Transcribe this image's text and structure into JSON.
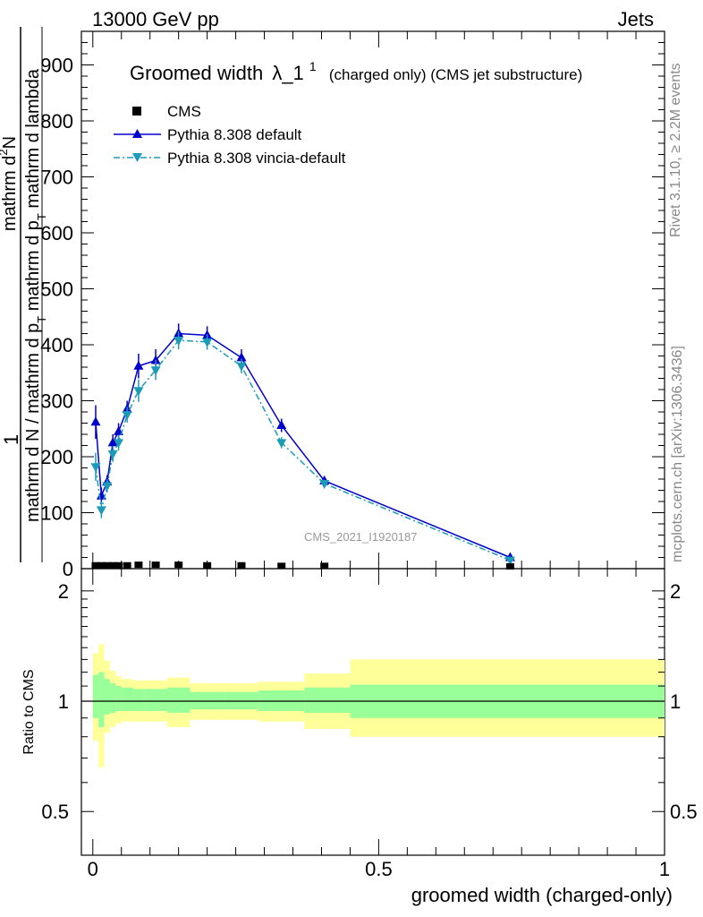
{
  "header": {
    "left": "13000 GeV pp",
    "right": "Jets"
  },
  "title": {
    "main": "Groomed width",
    "lambda": "λ_1",
    "sup": "1",
    "rest": "(charged only) (CMS jet substructure)"
  },
  "side_labels": {
    "rivet": "Rivet 3.1.10, ≥ 2.2M events",
    "mcplots": "mcplots.cern.ch [arXiv:1306.3436]"
  },
  "watermark": "CMS_2021_I1920187",
  "ylabel_main": {
    "denominator": "mathrm d N / mathrm d p",
    "denominator_sub": "T",
    "denominator_rest": " mathrm d p",
    "denominator_sub2": "T",
    "denominator_rest2": " mathrm d lambda",
    "numerator_top": "mathrm d",
    "numerator_sup": "2",
    "numerator_rest": "N",
    "prefix": "1"
  },
  "ylabel_ratio": "Ratio to CMS",
  "xlabel": "groomed width (charged-only)",
  "colors": {
    "cms": "#000000",
    "pythia_default": "#0000cc",
    "pythia_vincia": "#1b9bb8",
    "band_inner": "#99ff99",
    "band_outer": "#ffff99"
  },
  "chart_data": [
    {
      "type": "line",
      "panel": "main",
      "xlim": [
        -0.02,
        1.0
      ],
      "ylim": [
        0,
        960
      ],
      "yticks": [
        0,
        100,
        200,
        300,
        400,
        500,
        600,
        700,
        800,
        900
      ],
      "legend_placement": "top-left",
      "series": [
        {
          "name": "CMS",
          "marker": "square",
          "x": [
            0.005,
            0.015,
            0.025,
            0.035,
            0.045,
            0.06,
            0.08,
            0.11,
            0.15,
            0.2,
            0.26,
            0.33,
            0.405,
            0.73
          ],
          "y": [
            2,
            2,
            2,
            2,
            2,
            2,
            3,
            3,
            3,
            2,
            2,
            1,
            1,
            0
          ]
        },
        {
          "name": "Pythia 8.308 default",
          "marker": "triangle-up",
          "x": [
            0.005,
            0.015,
            0.025,
            0.035,
            0.045,
            0.06,
            0.08,
            0.11,
            0.15,
            0.2,
            0.26,
            0.33,
            0.405,
            0.73
          ],
          "y": [
            262,
            130,
            155,
            225,
            245,
            285,
            362,
            372,
            420,
            417,
            377,
            256,
            157,
            20
          ],
          "err": [
            30,
            15,
            12,
            15,
            15,
            15,
            22,
            20,
            18,
            16,
            15,
            12,
            8,
            3
          ]
        },
        {
          "name": "Pythia 8.308 vincia-default",
          "marker": "triangle-down",
          "x": [
            0.005,
            0.015,
            0.025,
            0.035,
            0.045,
            0.06,
            0.08,
            0.11,
            0.15,
            0.2,
            0.26,
            0.33,
            0.405,
            0.73
          ],
          "y": [
            182,
            105,
            148,
            205,
            225,
            275,
            318,
            355,
            408,
            405,
            362,
            225,
            152,
            15
          ],
          "err": [
            25,
            15,
            12,
            14,
            14,
            14,
            20,
            18,
            16,
            14,
            13,
            10,
            7,
            3
          ]
        }
      ]
    },
    {
      "type": "area",
      "panel": "ratio",
      "xlim": [
        -0.02,
        1.0
      ],
      "ylim": [
        0.38,
        2.3
      ],
      "ylog": true,
      "yticks": [
        0.5,
        1,
        2
      ],
      "reference_line": 1,
      "bins": [
        {
          "lo": 0.0,
          "hi": 0.01,
          "inner": [
            0.9,
            1.18
          ],
          "outer": [
            0.78,
            1.35
          ]
        },
        {
          "lo": 0.01,
          "hi": 0.02,
          "inner": [
            0.85,
            1.2
          ],
          "outer": [
            0.66,
            1.43
          ]
        },
        {
          "lo": 0.02,
          "hi": 0.03,
          "inner": [
            0.92,
            1.15
          ],
          "outer": [
            0.82,
            1.29
          ]
        },
        {
          "lo": 0.03,
          "hi": 0.04,
          "inner": [
            0.93,
            1.12
          ],
          "outer": [
            0.85,
            1.21
          ]
        },
        {
          "lo": 0.04,
          "hi": 0.05,
          "inner": [
            0.94,
            1.1
          ],
          "outer": [
            0.87,
            1.17
          ]
        },
        {
          "lo": 0.05,
          "hi": 0.07,
          "inner": [
            0.94,
            1.09
          ],
          "outer": [
            0.88,
            1.15
          ]
        },
        {
          "lo": 0.07,
          "hi": 0.09,
          "inner": [
            0.94,
            1.08
          ],
          "outer": [
            0.88,
            1.14
          ]
        },
        {
          "lo": 0.09,
          "hi": 0.13,
          "inner": [
            0.94,
            1.08
          ],
          "outer": [
            0.88,
            1.14
          ]
        },
        {
          "lo": 0.13,
          "hi": 0.17,
          "inner": [
            0.93,
            1.09
          ],
          "outer": [
            0.85,
            1.16
          ]
        },
        {
          "lo": 0.17,
          "hi": 0.23,
          "inner": [
            0.95,
            1.06
          ],
          "outer": [
            0.89,
            1.12
          ]
        },
        {
          "lo": 0.23,
          "hi": 0.29,
          "inner": [
            0.95,
            1.06
          ],
          "outer": [
            0.89,
            1.12
          ]
        },
        {
          "lo": 0.29,
          "hi": 0.37,
          "inner": [
            0.94,
            1.07
          ],
          "outer": [
            0.88,
            1.13
          ]
        },
        {
          "lo": 0.37,
          "hi": 0.45,
          "inner": [
            0.93,
            1.09
          ],
          "outer": [
            0.84,
            1.19
          ]
        },
        {
          "lo": 0.45,
          "hi": 1.0,
          "inner": [
            0.9,
            1.11
          ],
          "outer": [
            0.8,
            1.3
          ]
        }
      ]
    }
  ]
}
